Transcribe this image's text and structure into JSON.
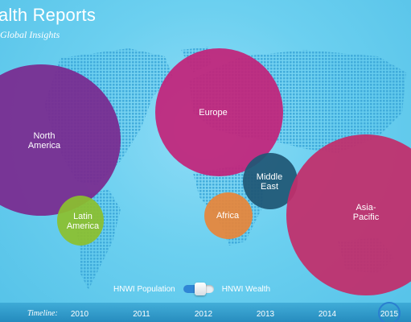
{
  "header": {
    "title": "alth Reports",
    "subtitle": "Global Insights"
  },
  "regions": [
    {
      "label": "North\nAmerica",
      "color": "#7a2a8f"
    },
    {
      "label": "Europe",
      "color": "#c2247a"
    },
    {
      "label": "Latin\nAmerica",
      "color": "#8cbf2e"
    },
    {
      "label": "Africa",
      "color": "#e7853a"
    },
    {
      "label": "Middle\nEast",
      "color": "#1f5775"
    },
    {
      "label": "Asia-Pacific",
      "color": "#c22d6a"
    }
  ],
  "toggle": {
    "left_label": "HNWI Population",
    "right_label": "HNWI Wealth"
  },
  "timeline": {
    "label": "Timeline:",
    "years": [
      "2010",
      "2011",
      "2012",
      "2013",
      "2014",
      "2015"
    ],
    "selected": "2015"
  },
  "colors": {
    "background": "#62c9ec",
    "map_dots": "#3aa6d8",
    "accent": "#2a7fd0"
  }
}
